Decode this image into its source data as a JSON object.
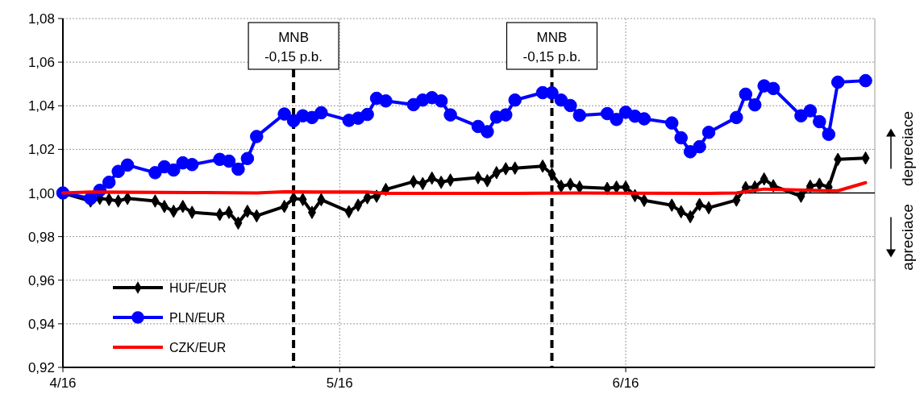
{
  "chart_data": {
    "type": "line",
    "xlim": [
      "2016-04-01",
      "2016-06-28"
    ],
    "ylim": [
      0.92,
      1.08
    ],
    "xticks": [
      {
        "value": "2016-04-01",
        "label": "4/16"
      },
      {
        "value": "2016-05-01",
        "label": "5/16"
      },
      {
        "value": "2016-06-01",
        "label": "6/16"
      }
    ],
    "yticks": [
      {
        "value": 0.92,
        "label": "0,92"
      },
      {
        "value": 0.94,
        "label": "0,94"
      },
      {
        "value": 0.96,
        "label": "0,96"
      },
      {
        "value": 0.98,
        "label": "0,98"
      },
      {
        "value": 1.0,
        "label": "1,00"
      },
      {
        "value": 1.02,
        "label": "1,02"
      },
      {
        "value": 1.04,
        "label": "1,04"
      },
      {
        "value": 1.06,
        "label": "1,06"
      },
      {
        "value": 1.08,
        "label": "1,08"
      }
    ],
    "grid": true,
    "legend": "bottom left",
    "line_style": "solid",
    "ref_lines": [
      {
        "axis": "y",
        "value": 1.0,
        "label": null,
        "color": "#000000",
        "line_style": "solid"
      },
      {
        "axis": "x",
        "value": "2016-04-26",
        "label": "MNB -0,15 p.b.",
        "color": "#000000",
        "line_style": "dashed"
      },
      {
        "axis": "x",
        "value": "2016-05-24",
        "label": "MNB -0,15 p.b.",
        "color": "#000000",
        "line_style": "dashed"
      }
    ],
    "annotations": [
      "depreciace",
      "apreciace"
    ],
    "series": [
      {
        "name": "HUF/EUR",
        "color": "#000000",
        "marker": "diamond",
        "x": [
          "2016-04-01",
          "2016-04-04",
          "2016-04-05",
          "2016-04-06",
          "2016-04-07",
          "2016-04-08",
          "2016-04-11",
          "2016-04-12",
          "2016-04-13",
          "2016-04-14",
          "2016-04-15",
          "2016-04-18",
          "2016-04-19",
          "2016-04-20",
          "2016-04-21",
          "2016-04-22",
          "2016-04-25",
          "2016-04-26",
          "2016-04-27",
          "2016-04-28",
          "2016-04-29",
          "2016-05-02",
          "2016-05-03",
          "2016-05-04",
          "2016-05-05",
          "2016-05-06",
          "2016-05-09",
          "2016-05-10",
          "2016-05-11",
          "2016-05-12",
          "2016-05-13",
          "2016-05-16",
          "2016-05-17",
          "2016-05-18",
          "2016-05-19",
          "2016-05-20",
          "2016-05-23",
          "2016-05-24",
          "2016-05-25",
          "2016-05-26",
          "2016-05-27",
          "2016-05-30",
          "2016-05-31",
          "2016-06-01",
          "2016-06-02",
          "2016-06-03",
          "2016-06-06",
          "2016-06-07",
          "2016-06-08",
          "2016-06-09",
          "2016-06-10",
          "2016-06-13",
          "2016-06-14",
          "2016-06-15",
          "2016-06-16",
          "2016-06-17",
          "2016-06-20",
          "2016-06-21",
          "2016-06-22",
          "2016-06-23",
          "2016-06-24",
          "2016-06-27"
        ],
        "values": [
          1.0,
          0.9963,
          0.9975,
          0.997,
          0.9963,
          0.9975,
          0.9963,
          0.9938,
          0.9916,
          0.9938,
          0.9911,
          0.9901,
          0.9911,
          0.9862,
          0.9916,
          0.9895,
          0.9938,
          0.9975,
          0.997,
          0.9911,
          0.9969,
          0.9914,
          0.9944,
          0.9978,
          0.9985,
          1.0016,
          1.0052,
          1.0043,
          1.0068,
          1.0049,
          1.0059,
          1.007,
          1.0056,
          1.0093,
          1.0111,
          1.0114,
          1.0123,
          1.0086,
          1.0031,
          1.004,
          1.0027,
          1.0021,
          1.0027,
          1.0027,
          0.9988,
          0.9966,
          0.9944,
          0.9914,
          0.9891,
          0.9947,
          0.9932,
          0.9967,
          1.0025,
          1.0027,
          1.0064,
          1.0033,
          0.9985,
          1.0031,
          1.004,
          1.0027,
          1.0154,
          1.016
        ]
      },
      {
        "name": "PLN/EUR",
        "color": "#0000ff",
        "marker": "circle",
        "x": [
          "2016-04-01",
          "2016-04-04",
          "2016-04-05",
          "2016-04-06",
          "2016-04-07",
          "2016-04-08",
          "2016-04-11",
          "2016-04-12",
          "2016-04-13",
          "2016-04-14",
          "2016-04-15",
          "2016-04-18",
          "2016-04-19",
          "2016-04-20",
          "2016-04-21",
          "2016-04-22",
          "2016-04-25",
          "2016-04-26",
          "2016-04-27",
          "2016-04-28",
          "2016-04-29",
          "2016-05-02",
          "2016-05-03",
          "2016-05-04",
          "2016-05-05",
          "2016-05-06",
          "2016-05-09",
          "2016-05-10",
          "2016-05-11",
          "2016-05-12",
          "2016-05-13",
          "2016-05-16",
          "2016-05-17",
          "2016-05-18",
          "2016-05-19",
          "2016-05-20",
          "2016-05-23",
          "2016-05-24",
          "2016-05-25",
          "2016-05-26",
          "2016-05-27",
          "2016-05-30",
          "2016-05-31",
          "2016-06-01",
          "2016-06-02",
          "2016-06-03",
          "2016-06-06",
          "2016-06-07",
          "2016-06-08",
          "2016-06-09",
          "2016-06-10",
          "2016-06-13",
          "2016-06-14",
          "2016-06-15",
          "2016-06-16",
          "2016-06-17",
          "2016-06-20",
          "2016-06-21",
          "2016-06-22",
          "2016-06-23",
          "2016-06-24",
          "2016-06-27"
        ],
        "values": [
          1.0,
          0.9975,
          1.0012,
          1.0049,
          1.0099,
          1.0128,
          1.0093,
          1.012,
          1.0105,
          1.0138,
          1.013,
          1.0154,
          1.0146,
          1.0109,
          1.0158,
          1.0259,
          1.0362,
          1.0331,
          1.0354,
          1.0346,
          1.0368,
          1.0333,
          1.0343,
          1.036,
          1.0434,
          1.0422,
          1.0405,
          1.0426,
          1.0437,
          1.0422,
          1.0358,
          1.0305,
          1.0281,
          1.0348,
          1.0358,
          1.0426,
          1.046,
          1.0459,
          1.0426,
          1.0401,
          1.0356,
          1.0364,
          1.0337,
          1.037,
          1.0352,
          1.034,
          1.0321,
          1.0253,
          1.0189,
          1.0212,
          1.0278,
          1.0346,
          1.0453,
          1.0404,
          1.0491,
          1.0479,
          1.0354,
          1.0377,
          1.0327,
          1.0269,
          1.0508,
          1.0515
        ]
      },
      {
        "name": "CZK/EUR",
        "color": "#ff0000",
        "marker": "none",
        "x": [
          "2016-04-01",
          "2016-04-04",
          "2016-04-15",
          "2016-04-22",
          "2016-04-25",
          "2016-04-29",
          "2016-05-04",
          "2016-05-06",
          "2016-05-20",
          "2016-05-27",
          "2016-06-10",
          "2016-06-13",
          "2016-06-16",
          "2016-06-23",
          "2016-06-24",
          "2016-06-27"
        ],
        "values": [
          1.0,
          1.0005,
          1.0002,
          1.0,
          1.0006,
          1.0005,
          1.0005,
          0.9998,
          0.9998,
          1.0,
          0.9998,
          1.0,
          1.0018,
          1.001,
          1.001,
          1.0047
        ]
      }
    ]
  }
}
